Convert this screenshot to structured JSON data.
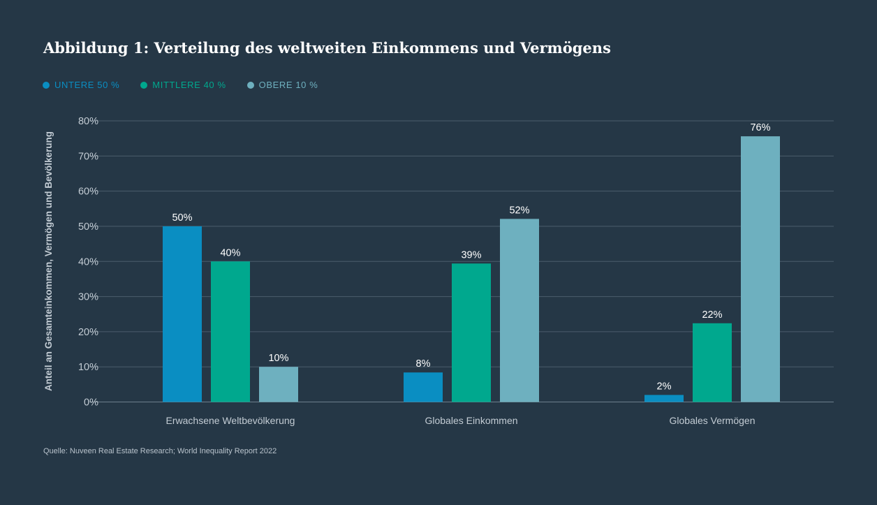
{
  "title": "Abbildung 1: Verteilung des weltweiten Einkommens und Vermögens",
  "source": "Quelle: Nuveen Real Estate Research; World Inequality Report 2022",
  "chart_data": {
    "type": "bar",
    "categories": [
      "Erwachsene Weltbevölkerung",
      "Globales Einkommen",
      "Globales Vermögen"
    ],
    "series": [
      {
        "name": "UNTERE 50 %",
        "color": "#0a8ec2",
        "values": [
          50,
          8.4,
          2
        ],
        "labels": [
          "50%",
          "8%",
          "2%"
        ]
      },
      {
        "name": "MITTLERE 40 %",
        "color": "#00a88e",
        "values": [
          40,
          39.4,
          22.4
        ],
        "labels": [
          "40%",
          "39%",
          "22%"
        ]
      },
      {
        "name": "OBERE 10 %",
        "color": "#6eb0bf",
        "values": [
          10,
          52.1,
          75.6
        ],
        "labels": [
          "10%",
          "52%",
          "76%"
        ]
      }
    ],
    "ylabel": "Anteil an Gesamteinkommen, Vermögen und Bevölkerung",
    "xlabel": "",
    "ylim": [
      0,
      80
    ],
    "yticks": [
      "0%",
      "10%",
      "20%",
      "30%",
      "40%",
      "50%",
      "60%",
      "70%",
      "80%"
    ],
    "grid": true,
    "legend_position": "top-left"
  }
}
